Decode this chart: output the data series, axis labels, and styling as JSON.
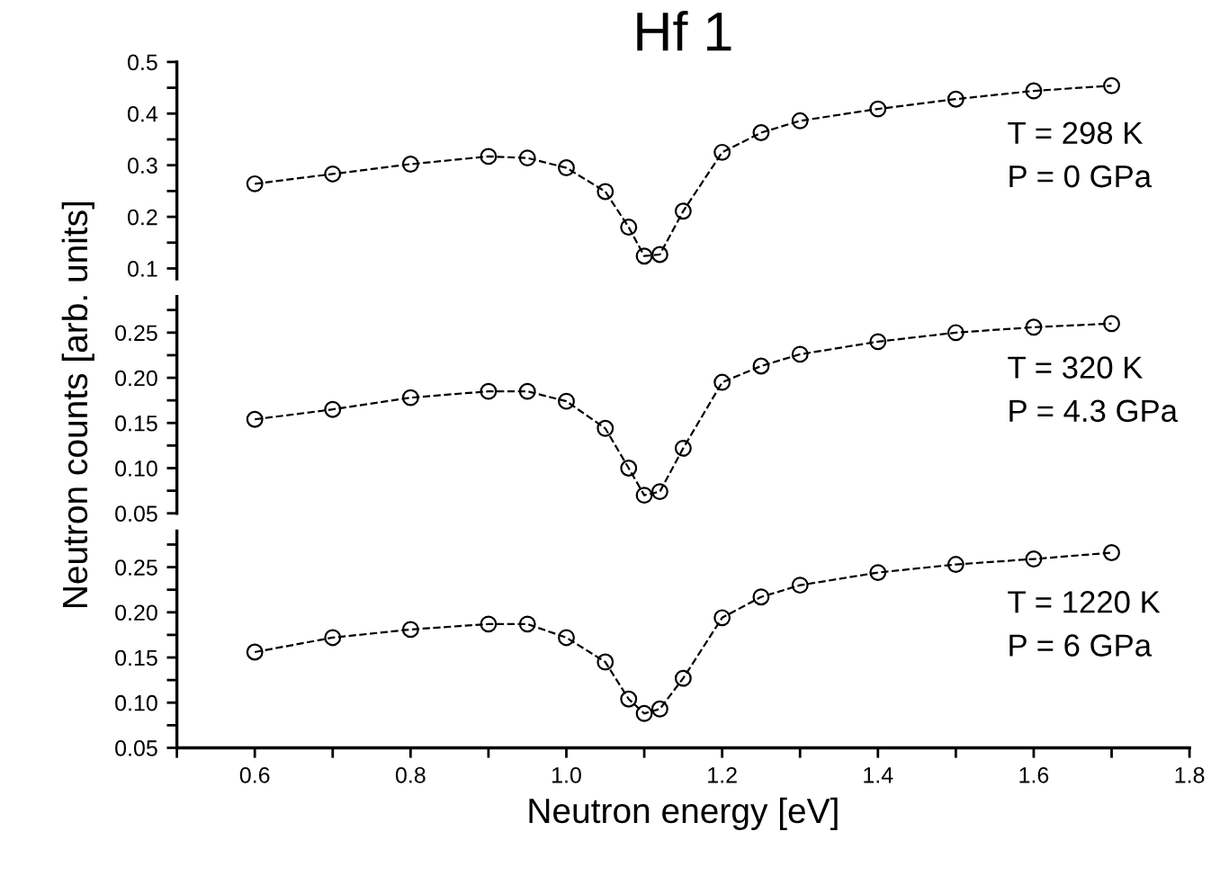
{
  "chart_data": [
    {
      "type": "line",
      "title": "Hf 1",
      "marker": "circle",
      "line_style": "dashed",
      "tick_labels": "y",
      "xlim": [
        0.5,
        1.8
      ],
      "ylim": [
        0.08,
        0.5
      ],
      "yticks": [
        0.1,
        {
          "value": 0.15,
          "label": null
        },
        0.2,
        {
          "value": 0.25,
          "label": null
        },
        0.3,
        {
          "value": 0.35,
          "label": null
        },
        0.4,
        {
          "value": 0.45,
          "label": null
        },
        0.5
      ],
      "annotations": [
        "T = 298 K",
        "P = 0 GPa"
      ],
      "series": [
        {
          "color": "#000000",
          "x": [
            0.6,
            0.7,
            0.8,
            0.9,
            0.95,
            1.0,
            1.05,
            1.08,
            1.1,
            1.12,
            1.15,
            1.2,
            1.25,
            1.3,
            1.4,
            1.5,
            1.6,
            1.7
          ],
          "values": [
            0.264,
            0.283,
            0.302,
            0.317,
            0.314,
            0.295,
            0.249,
            0.18,
            0.124,
            0.127,
            0.211,
            0.325,
            0.363,
            0.386,
            0.409,
            0.428,
            0.444,
            0.454
          ]
        }
      ]
    },
    {
      "type": "line",
      "ylabel": "Neutron counts [arb. units]",
      "marker": "circle",
      "line_style": "dashed",
      "tick_labels": "y",
      "xlim": [
        0.5,
        1.8
      ],
      "ylim": [
        0.05,
        0.29
      ],
      "yticks": [
        {
          "value": 0.05,
          "label": "0.05"
        },
        {
          "value": 0.075,
          "label": null
        },
        {
          "value": 0.1,
          "label": "0.10"
        },
        {
          "value": 0.125,
          "label": null
        },
        {
          "value": 0.15,
          "label": "0.15"
        },
        {
          "value": 0.175,
          "label": null
        },
        {
          "value": 0.2,
          "label": "0.20"
        },
        {
          "value": 0.225,
          "label": null
        },
        {
          "value": 0.25,
          "label": "0.25"
        },
        {
          "value": 0.275,
          "label": null
        }
      ],
      "annotations": [
        "T = 320 K",
        "P = 4.3 GPa"
      ],
      "series": [
        {
          "color": "#000000",
          "x": [
            0.6,
            0.7,
            0.8,
            0.9,
            0.95,
            1.0,
            1.05,
            1.08,
            1.1,
            1.12,
            1.15,
            1.2,
            1.25,
            1.3,
            1.4,
            1.5,
            1.6,
            1.7
          ],
          "values": [
            0.154,
            0.165,
            0.178,
            0.185,
            0.185,
            0.174,
            0.144,
            0.1,
            0.07,
            0.074,
            0.122,
            0.195,
            0.213,
            0.226,
            0.24,
            0.25,
            0.256,
            0.26
          ]
        }
      ]
    },
    {
      "type": "line",
      "xlabel": "Neutron energy [eV]",
      "marker": "circle",
      "line_style": "dashed",
      "xlim": [
        0.5,
        1.8
      ],
      "ylim": [
        0.05,
        0.29
      ],
      "xticks": [
        {
          "value": 0.5,
          "label": null
        },
        0.6,
        {
          "value": 0.7,
          "label": null
        },
        0.8,
        {
          "value": 0.9,
          "label": null
        },
        {
          "value": 1.0,
          "label": "1.0"
        },
        {
          "value": 1.1,
          "label": null
        },
        1.2,
        {
          "value": 1.3,
          "label": null
        },
        1.4,
        {
          "value": 1.5,
          "label": null
        },
        1.6,
        {
          "value": 1.7,
          "label": null
        },
        1.8
      ],
      "yticks": [
        {
          "value": 0.05,
          "label": "0.05"
        },
        {
          "value": 0.075,
          "label": null
        },
        {
          "value": 0.1,
          "label": "0.10"
        },
        {
          "value": 0.125,
          "label": null
        },
        {
          "value": 0.15,
          "label": "0.15"
        },
        {
          "value": 0.175,
          "label": null
        },
        {
          "value": 0.2,
          "label": "0.20"
        },
        {
          "value": 0.225,
          "label": null
        },
        {
          "value": 0.25,
          "label": "0.25"
        },
        {
          "value": 0.275,
          "label": null
        }
      ],
      "annotations": [
        "T = 1220 K",
        "P = 6 GPa"
      ],
      "series": [
        {
          "color": "#000000",
          "x": [
            0.6,
            0.7,
            0.8,
            0.9,
            0.95,
            1.0,
            1.05,
            1.08,
            1.1,
            1.12,
            1.15,
            1.2,
            1.25,
            1.3,
            1.4,
            1.5,
            1.6,
            1.7
          ],
          "values": [
            0.156,
            0.172,
            0.181,
            0.187,
            0.187,
            0.172,
            0.145,
            0.104,
            0.088,
            0.093,
            0.127,
            0.194,
            0.217,
            0.23,
            0.244,
            0.253,
            0.259,
            0.266
          ]
        }
      ]
    }
  ]
}
